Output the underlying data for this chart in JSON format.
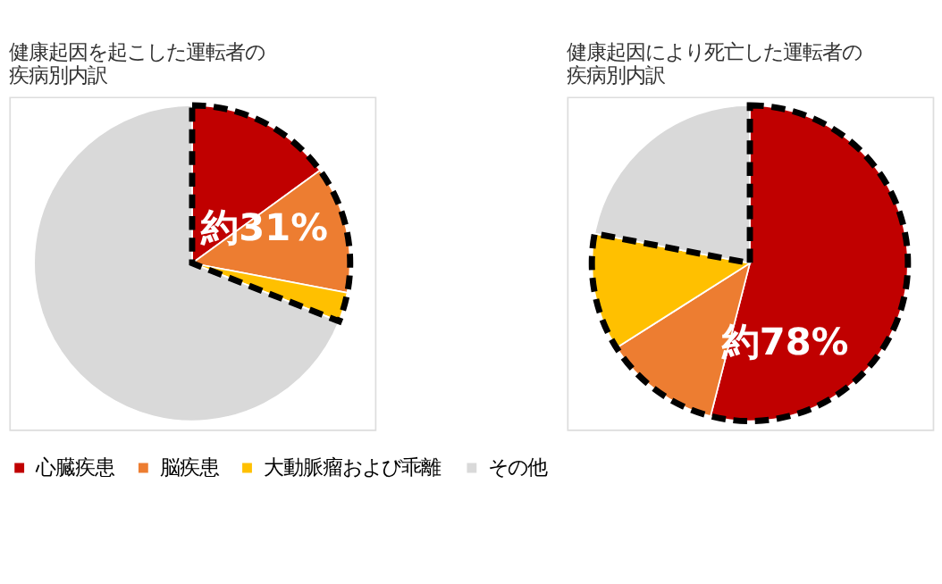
{
  "chart_data": [
    {
      "type": "pie",
      "title": "健康起因を起こした運転者の疾病別内訳",
      "categories": [
        "心臓疾患",
        "脳疾患",
        "大動脈瘤および乖離",
        "その他"
      ],
      "values": [
        15,
        13,
        3,
        69
      ],
      "colors": [
        "#c00000",
        "#ed7d31",
        "#ffc000",
        "#d9d9d9"
      ],
      "annotations": [
        "約31%"
      ],
      "legend": "bottom"
    },
    {
      "type": "pie",
      "title": "健康起因により死亡した運転者の疾病別内訳",
      "categories": [
        null,
        null,
        null,
        null
      ],
      "values": [
        54,
        12,
        12,
        22
      ],
      "colors": [
        "#c00000",
        "#ed7d31",
        "#ffc000",
        "#d9d9d9"
      ],
      "annotations": [
        "約78%"
      ]
    }
  ]
}
